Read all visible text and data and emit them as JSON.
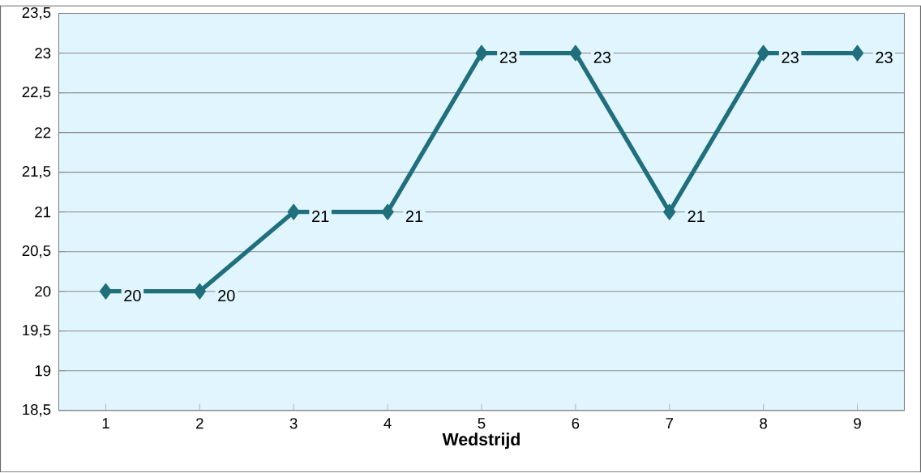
{
  "chart_data": {
    "type": "line",
    "xlabel": "Wedstrijd",
    "categories": [
      "1",
      "2",
      "3",
      "4",
      "5",
      "6",
      "7",
      "8",
      "9"
    ],
    "series": [
      {
        "color": "#1f6f7c",
        "values": [
          20,
          20,
          21,
          21,
          23,
          23,
          21,
          23,
          23
        ]
      }
    ],
    "ylim": [
      18.5,
      23.5
    ],
    "yticks": [
      {
        "value": 18.5,
        "label": "18,5"
      },
      19,
      {
        "value": 19.5,
        "label": "19,5"
      },
      20,
      {
        "value": 20.5,
        "label": "20,5"
      },
      21,
      {
        "value": 21.5,
        "label": "21,5"
      },
      22,
      {
        "value": 22.5,
        "label": "22,5"
      },
      23,
      {
        "value": 23.5,
        "label": "23,5"
      }
    ],
    "grid": "y",
    "marker": "diamond",
    "line_style": "solid",
    "data_labels": true
  }
}
